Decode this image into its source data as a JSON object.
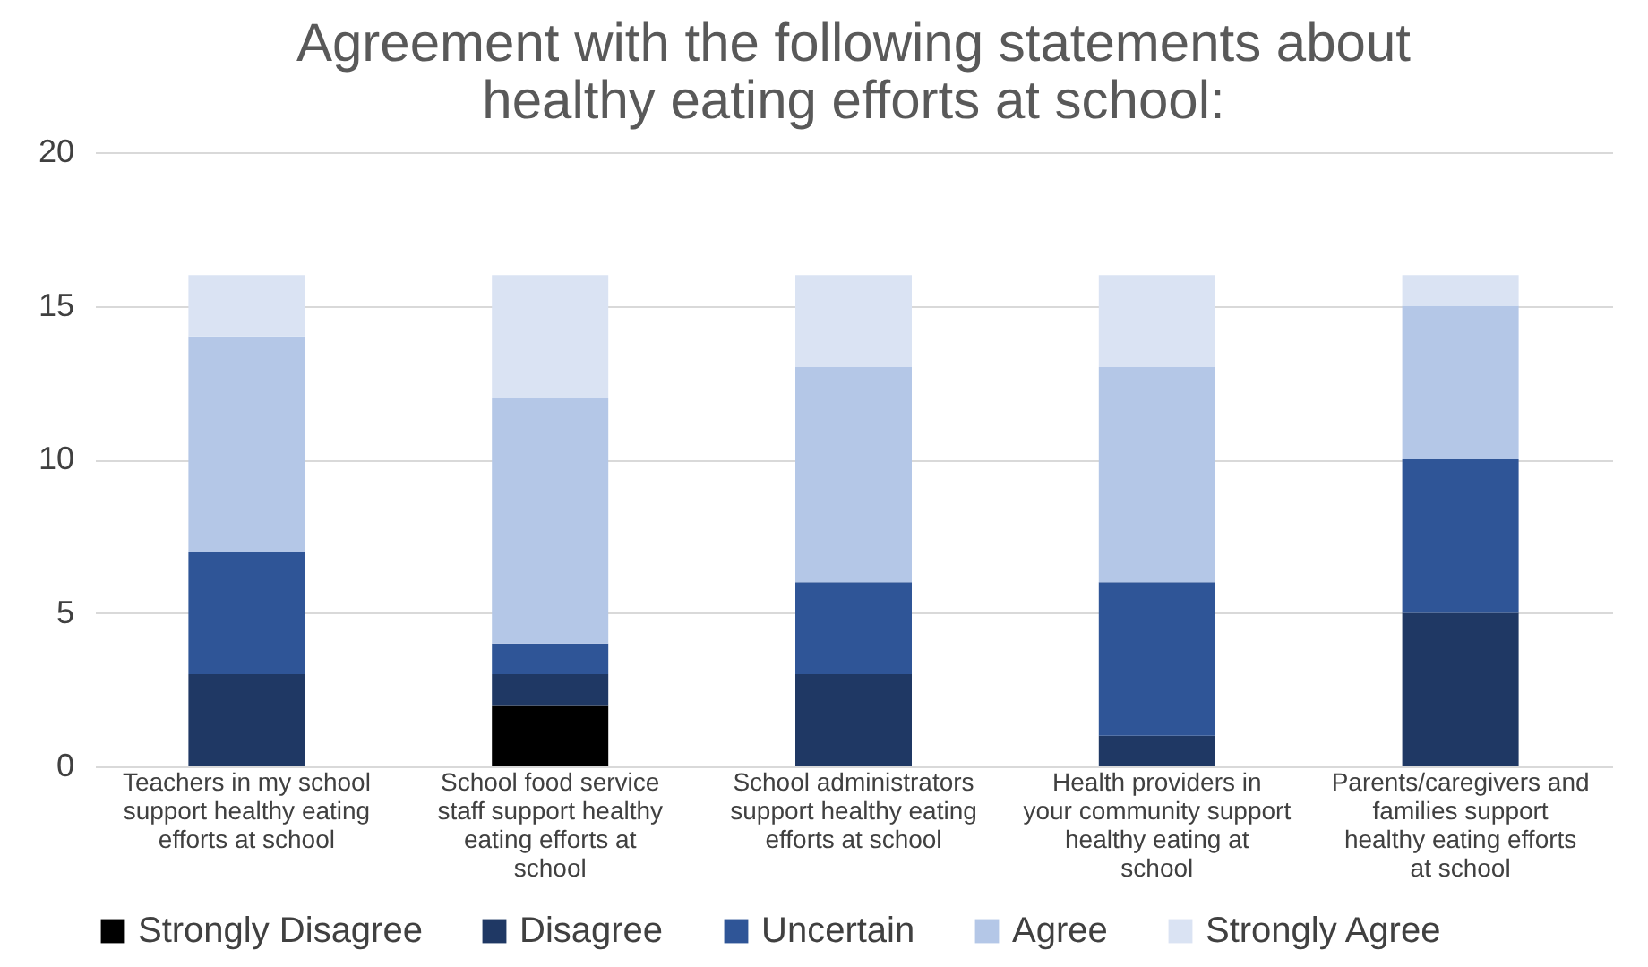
{
  "chart_data": {
    "type": "bar",
    "stacked": true,
    "title": "Agreement with the following statements about healthy eating efforts at school:",
    "categories": [
      "Teachers in my school support healthy eating efforts at school",
      "School food service staff support healthy eating efforts at school",
      "School administrators support healthy eating efforts at school",
      "Health providers in your community support healthy eating at school",
      "Parents/caregivers and families support healthy eating efforts at school"
    ],
    "series": [
      {
        "name": "Strongly Disagree",
        "color": "#000000",
        "values": [
          0,
          2,
          0,
          0,
          0
        ]
      },
      {
        "name": "Disagree",
        "color": "#1f3864",
        "values": [
          3,
          1,
          3,
          1,
          5
        ]
      },
      {
        "name": "Uncertain",
        "color": "#2f5597",
        "values": [
          4,
          1,
          3,
          5,
          5
        ]
      },
      {
        "name": "Agree",
        "color": "#b4c7e7",
        "values": [
          7,
          8,
          7,
          7,
          5
        ]
      },
      {
        "name": "Strongly Agree",
        "color": "#dae3f3",
        "values": [
          2,
          4,
          3,
          3,
          1
        ]
      }
    ],
    "ylim": [
      0,
      20
    ],
    "yticks": [
      0,
      5,
      10,
      15,
      20
    ],
    "grid": "y",
    "legend": "bottom"
  }
}
